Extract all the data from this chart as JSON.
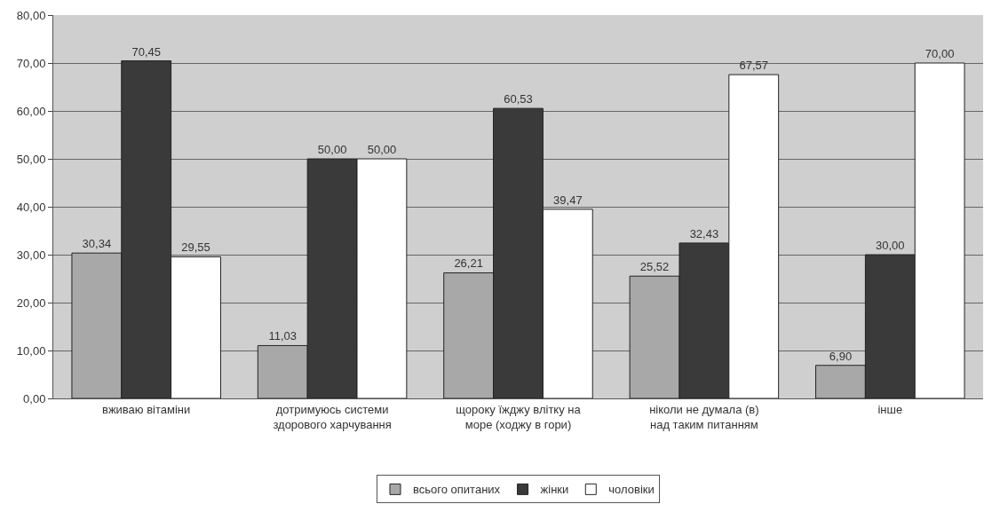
{
  "chart_data": {
    "type": "bar",
    "categories": [
      "вживаю вітаміни",
      "дотримуюсь системи здорового харчування",
      "щороку їжджу влітку на море (ходжу в гори)",
      "ніколи не думала (в) над таким питанням",
      "інше"
    ],
    "series": [
      {
        "name": "всього опитаних",
        "color": "#a8a8a8",
        "values": [
          30.34,
          11.03,
          26.21,
          25.52,
          6.9
        ],
        "value_labels": [
          "30,34",
          "11,03",
          "26,21",
          "25,52",
          "6,90"
        ]
      },
      {
        "name": "жінки",
        "color": "#3a3a3a",
        "values": [
          70.45,
          50.0,
          60.53,
          32.43,
          30.0
        ],
        "value_labels": [
          "70,45",
          "50,00",
          "60,53",
          "32,43",
          "30,00"
        ]
      },
      {
        "name": "чоловіки",
        "color": "#ffffff",
        "values": [
          29.55,
          50.0,
          39.47,
          67.57,
          70.0
        ],
        "value_labels": [
          "29,55",
          "50,00",
          "39,47",
          "67,57",
          "70,00"
        ]
      }
    ],
    "ylim": [
      0,
      80
    ],
    "yticks": [
      {
        "value": 0,
        "label": "0,00"
      },
      {
        "value": 10,
        "label": "10,00"
      },
      {
        "value": 20,
        "label": "20,00"
      },
      {
        "value": 30,
        "label": "30,00"
      },
      {
        "value": 40,
        "label": "40,00"
      },
      {
        "value": 50,
        "label": "50,00"
      },
      {
        "value": 60,
        "label": "60,00"
      },
      {
        "value": 70,
        "label": "70,00"
      },
      {
        "value": 80,
        "label": "80,00"
      }
    ],
    "grid": "y",
    "legend": "bottom"
  }
}
